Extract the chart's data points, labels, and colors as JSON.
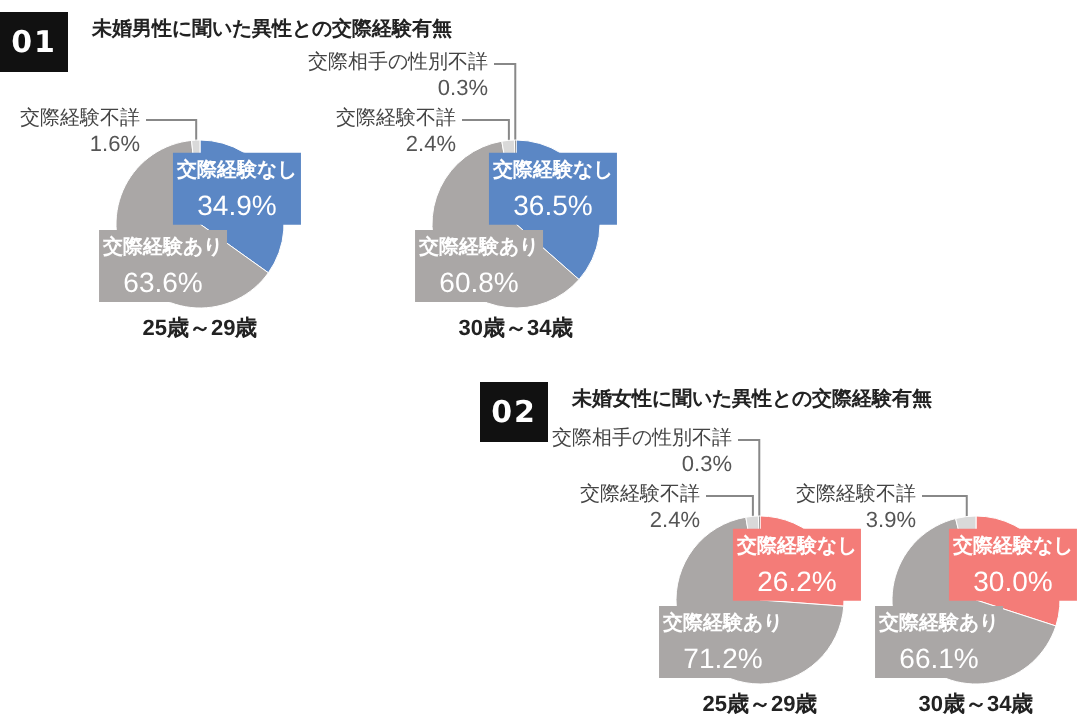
{
  "chart_data": [
    {
      "type": "pie",
      "title": "未婚男性に聞いた異性との交際経験有無",
      "annotations": [
        "01"
      ],
      "xlabel": "25歳～29歳",
      "categories": [
        "交際経験なし",
        "交際経験あり",
        "交際経験不詳"
      ],
      "values": [
        34.9,
        63.6,
        1.6
      ],
      "value_labels": [
        "34.9%",
        "63.6%",
        "1.6%"
      ],
      "colors": [
        "#5b87c5",
        "#aaa7a6",
        "#d9d9d9"
      ]
    },
    {
      "type": "pie",
      "xlabel": "30歳～34歳",
      "categories": [
        "交際経験なし",
        "交際経験あり",
        "交際経験不詳",
        "交際相手の性別不詳"
      ],
      "values": [
        36.5,
        60.8,
        2.4,
        0.3
      ],
      "value_labels": [
        "36.5%",
        "60.8%",
        "2.4%",
        "0.3%"
      ],
      "colors": [
        "#5b87c5",
        "#aaa7a6",
        "#d9d9d9",
        "#333333"
      ]
    },
    {
      "type": "pie",
      "title": "未婚女性に聞いた異性との交際経験有無",
      "annotations": [
        "02"
      ],
      "xlabel": "25歳～29歳",
      "categories": [
        "交際経験なし",
        "交際経験あり",
        "交際経験不詳",
        "交際相手の性別不詳"
      ],
      "values": [
        26.2,
        71.2,
        2.4,
        0.3
      ],
      "value_labels": [
        "26.2%",
        "71.2%",
        "2.4%",
        "0.3%"
      ],
      "colors": [
        "#f47c78",
        "#aaa7a6",
        "#d9d9d9",
        "#333333"
      ]
    },
    {
      "type": "pie",
      "xlabel": "30歳～34歳",
      "categories": [
        "交際経験なし",
        "交際経験あり",
        "交際経験不詳"
      ],
      "values": [
        30.0,
        66.1,
        3.9
      ],
      "value_labels": [
        "30.0%",
        "66.1%",
        "3.9%"
      ],
      "colors": [
        "#f47c78",
        "#aaa7a6",
        "#d9d9d9"
      ]
    }
  ]
}
